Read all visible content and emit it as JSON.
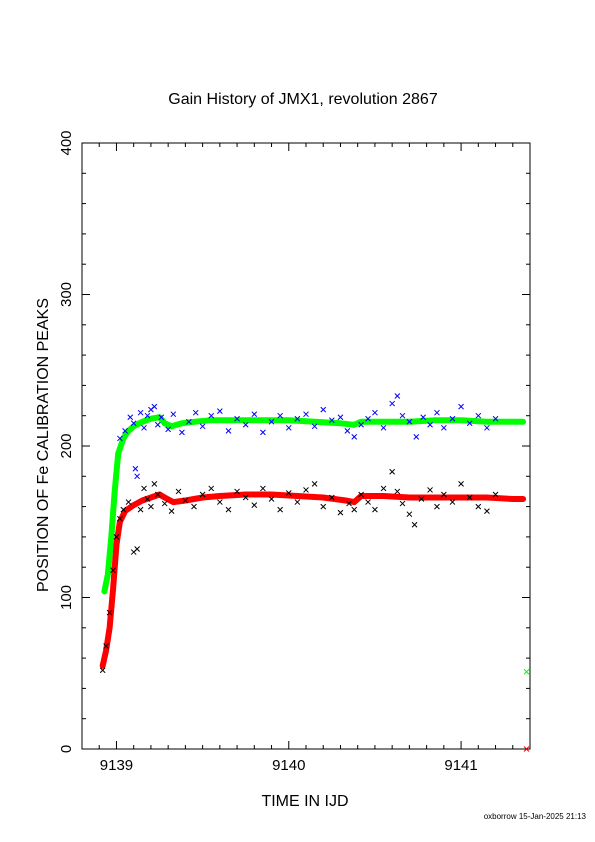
{
  "chart_data": {
    "type": "scatter",
    "title": "Gain History of JMX1, revolution 2867",
    "xlabel": "TIME IN IJD",
    "ylabel": "POSITION OF Fe CALIBRATION PEAKS",
    "xlim": [
      9138.8,
      9141.4
    ],
    "ylim": [
      0,
      400
    ],
    "xticks": [
      9139,
      9140,
      9141
    ],
    "yticks": [
      0,
      100,
      200,
      300,
      400
    ],
    "grid": false,
    "legend": "none",
    "footer": "oxborrow 15-Jan-2025 21:13",
    "colors": {
      "blue": "#0000ff",
      "black": "#000000",
      "green": "#00ff00",
      "red": "#ff0000"
    },
    "series": [
      {
        "color": "green",
        "marker": "thick-line",
        "points": [
          [
            9138.93,
            104
          ],
          [
            9138.95,
            115
          ],
          [
            9138.97,
            140
          ],
          [
            9138.99,
            170
          ],
          [
            9139.01,
            195
          ],
          [
            9139.04,
            205
          ],
          [
            9139.07,
            210
          ],
          [
            9139.1,
            213
          ],
          [
            9139.15,
            216
          ],
          [
            9139.2,
            218
          ],
          [
            9139.25,
            219
          ],
          [
            9139.28,
            215
          ],
          [
            9139.32,
            213
          ],
          [
            9139.38,
            215
          ],
          [
            9139.45,
            216
          ],
          [
            9139.55,
            217
          ],
          [
            9139.7,
            217
          ],
          [
            9139.85,
            217
          ],
          [
            9140.0,
            217
          ],
          [
            9140.15,
            216
          ],
          [
            9140.3,
            215
          ],
          [
            9140.38,
            214
          ],
          [
            9140.42,
            216
          ],
          [
            9140.55,
            216
          ],
          [
            9140.7,
            216
          ],
          [
            9140.85,
            217
          ],
          [
            9141.0,
            217
          ],
          [
            9141.15,
            216
          ],
          [
            9141.3,
            216
          ],
          [
            9141.36,
            216
          ]
        ]
      },
      {
        "color": "red",
        "marker": "thick-line",
        "points": [
          [
            9138.92,
            55
          ],
          [
            9138.94,
            65
          ],
          [
            9138.96,
            80
          ],
          [
            9138.98,
            105
          ],
          [
            9139.0,
            135
          ],
          [
            9139.02,
            150
          ],
          [
            9139.05,
            157
          ],
          [
            9139.1,
            161
          ],
          [
            9139.15,
            164
          ],
          [
            9139.2,
            166
          ],
          [
            9139.25,
            168
          ],
          [
            9139.28,
            166
          ],
          [
            9139.33,
            163
          ],
          [
            9139.4,
            164
          ],
          [
            9139.5,
            166
          ],
          [
            9139.6,
            167
          ],
          [
            9139.75,
            168
          ],
          [
            9139.9,
            168
          ],
          [
            9140.05,
            167
          ],
          [
            9140.2,
            166
          ],
          [
            9140.33,
            164
          ],
          [
            9140.38,
            163
          ],
          [
            9140.42,
            167
          ],
          [
            9140.55,
            167
          ],
          [
            9140.7,
            166
          ],
          [
            9140.85,
            166
          ],
          [
            9141.0,
            166
          ],
          [
            9141.15,
            166
          ],
          [
            9141.3,
            165
          ],
          [
            9141.36,
            165
          ]
        ]
      },
      {
        "color": "blue",
        "marker": "x",
        "points": [
          [
            9139.02,
            205
          ],
          [
            9139.05,
            210
          ],
          [
            9139.08,
            219
          ],
          [
            9139.1,
            215
          ],
          [
            9139.11,
            185
          ],
          [
            9139.12,
            180
          ],
          [
            9139.14,
            222
          ],
          [
            9139.16,
            212
          ],
          [
            9139.18,
            220
          ],
          [
            9139.2,
            224
          ],
          [
            9139.22,
            226
          ],
          [
            9139.24,
            214
          ],
          [
            9139.26,
            219
          ],
          [
            9139.3,
            211
          ],
          [
            9139.33,
            221
          ],
          [
            9139.38,
            209
          ],
          [
            9139.42,
            216
          ],
          [
            9139.46,
            222
          ],
          [
            9139.5,
            213
          ],
          [
            9139.55,
            220
          ],
          [
            9139.6,
            223
          ],
          [
            9139.65,
            210
          ],
          [
            9139.7,
            218
          ],
          [
            9139.75,
            214
          ],
          [
            9139.8,
            221
          ],
          [
            9139.85,
            209
          ],
          [
            9139.9,
            216
          ],
          [
            9139.95,
            220
          ],
          [
            9140.0,
            212
          ],
          [
            9140.05,
            218
          ],
          [
            9140.1,
            221
          ],
          [
            9140.15,
            213
          ],
          [
            9140.2,
            224
          ],
          [
            9140.25,
            217
          ],
          [
            9140.3,
            219
          ],
          [
            9140.34,
            210
          ],
          [
            9140.38,
            206
          ],
          [
            9140.42,
            214
          ],
          [
            9140.46,
            218
          ],
          [
            9140.5,
            222
          ],
          [
            9140.55,
            212
          ],
          [
            9140.6,
            228
          ],
          [
            9140.63,
            233
          ],
          [
            9140.66,
            220
          ],
          [
            9140.7,
            216
          ],
          [
            9140.74,
            206
          ],
          [
            9140.78,
            219
          ],
          [
            9140.82,
            214
          ],
          [
            9140.86,
            222
          ],
          [
            9140.9,
            212
          ],
          [
            9140.95,
            218
          ],
          [
            9141.0,
            226
          ],
          [
            9141.05,
            215
          ],
          [
            9141.1,
            220
          ],
          [
            9141.15,
            212
          ],
          [
            9141.2,
            218
          ]
        ]
      },
      {
        "color": "black",
        "marker": "x",
        "points": [
          [
            9138.92,
            52
          ],
          [
            9138.94,
            68
          ],
          [
            9138.96,
            90
          ],
          [
            9138.98,
            118
          ],
          [
            9139.0,
            140
          ],
          [
            9139.02,
            152
          ],
          [
            9139.04,
            158
          ],
          [
            9139.07,
            163
          ],
          [
            9139.1,
            130
          ],
          [
            9139.12,
            132
          ],
          [
            9139.14,
            158
          ],
          [
            9139.16,
            172
          ],
          [
            9139.18,
            165
          ],
          [
            9139.2,
            160
          ],
          [
            9139.22,
            175
          ],
          [
            9139.24,
            168
          ],
          [
            9139.28,
            162
          ],
          [
            9139.32,
            157
          ],
          [
            9139.36,
            170
          ],
          [
            9139.4,
            164
          ],
          [
            9139.45,
            160
          ],
          [
            9139.5,
            168
          ],
          [
            9139.55,
            172
          ],
          [
            9139.6,
            163
          ],
          [
            9139.65,
            158
          ],
          [
            9139.7,
            170
          ],
          [
            9139.75,
            166
          ],
          [
            9139.8,
            161
          ],
          [
            9139.85,
            172
          ],
          [
            9139.9,
            165
          ],
          [
            9139.95,
            158
          ],
          [
            9140.0,
            169
          ],
          [
            9140.05,
            163
          ],
          [
            9140.1,
            171
          ],
          [
            9140.15,
            175
          ],
          [
            9140.2,
            160
          ],
          [
            9140.25,
            166
          ],
          [
            9140.3,
            156
          ],
          [
            9140.35,
            162
          ],
          [
            9140.38,
            158
          ],
          [
            9140.42,
            168
          ],
          [
            9140.46,
            163
          ],
          [
            9140.5,
            158
          ],
          [
            9140.55,
            172
          ],
          [
            9140.6,
            183
          ],
          [
            9140.63,
            170
          ],
          [
            9140.66,
            162
          ],
          [
            9140.7,
            155
          ],
          [
            9140.73,
            148
          ],
          [
            9140.77,
            165
          ],
          [
            9140.82,
            171
          ],
          [
            9140.86,
            160
          ],
          [
            9140.9,
            168
          ],
          [
            9140.95,
            163
          ],
          [
            9141.0,
            175
          ],
          [
            9141.05,
            166
          ],
          [
            9141.1,
            160
          ],
          [
            9141.15,
            157
          ],
          [
            9141.2,
            168
          ]
        ]
      },
      {
        "color": "green",
        "marker": "x",
        "points": [
          [
            9141.38,
            51
          ]
        ]
      },
      {
        "color": "red",
        "marker": "x",
        "points": [
          [
            9141.38,
            0
          ]
        ]
      }
    ]
  }
}
